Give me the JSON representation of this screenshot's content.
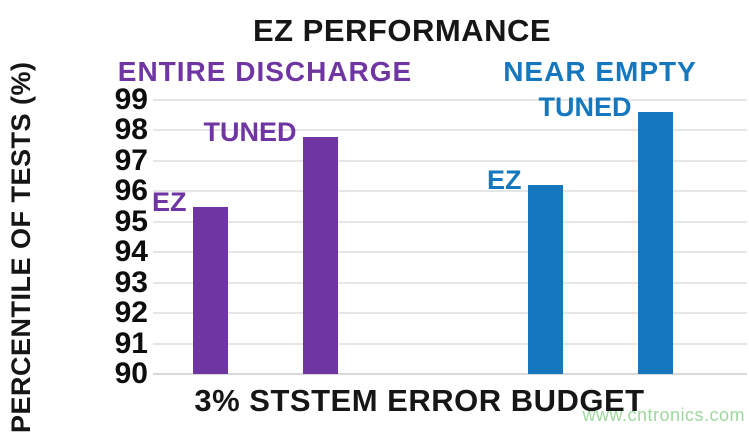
{
  "chart_data": {
    "type": "bar",
    "title": "EZ PERFORMANCE",
    "xlabel": "3% STSTEM ERROR BUDGET",
    "ylabel": "PERCENTILE OF TESTS (%)",
    "ylim": [
      90,
      99
    ],
    "yticks": [
      99,
      98,
      97,
      96,
      95,
      94,
      93,
      92,
      91,
      90
    ],
    "grid": true,
    "legend_position": "none",
    "groups": [
      {
        "label": "ENTIRE DISCHARGE",
        "color": "#6F35A2",
        "bars": [
          {
            "label": "EZ",
            "value": 95.5
          },
          {
            "label": "TUNED",
            "value": 97.8
          }
        ]
      },
      {
        "label": "NEAR EMPTY",
        "color": "#1578BE",
        "bars": [
          {
            "label": "EZ",
            "value": 96.2
          },
          {
            "label": "TUNED",
            "value": 98.6
          }
        ]
      }
    ]
  },
  "watermark": {
    "text": "www.cntronics.com",
    "color": "#9ed89e"
  },
  "colors": {
    "background": "#ffffff",
    "text": "#161616",
    "gridline": "#e6e6e6"
  }
}
